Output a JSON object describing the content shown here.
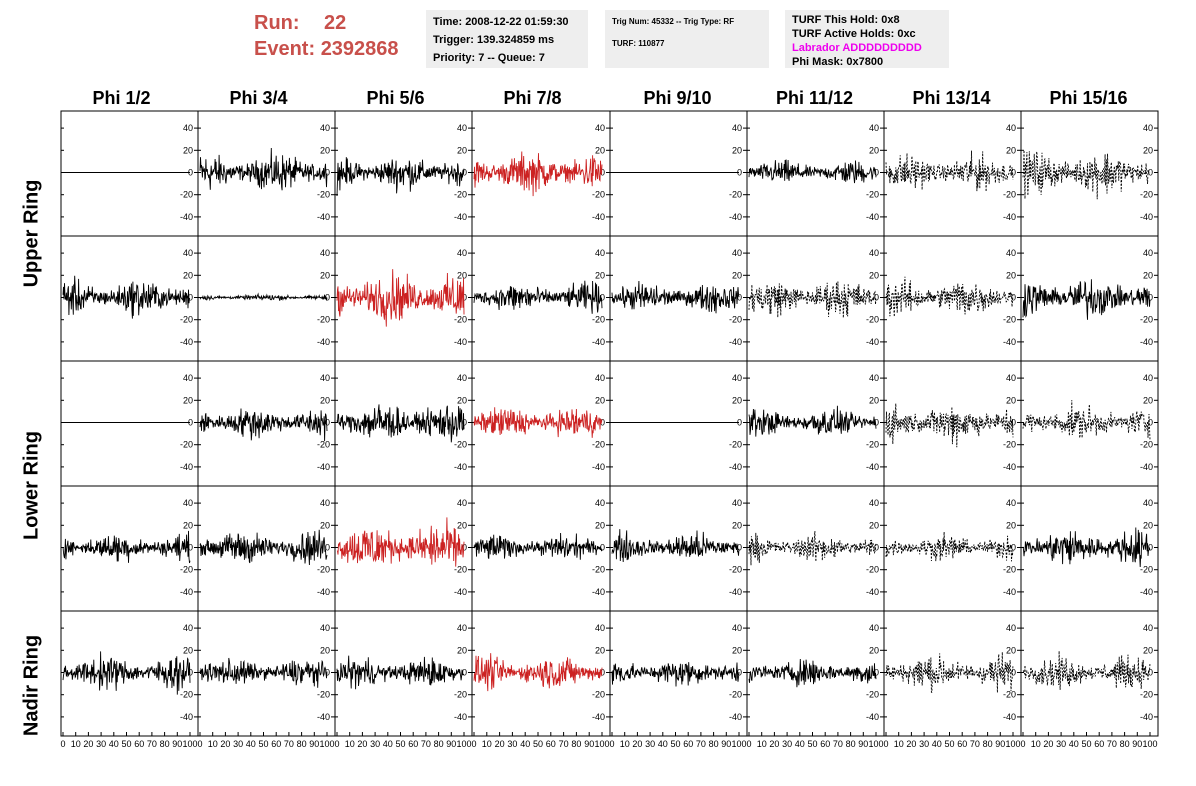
{
  "header": {
    "run_label": "Run:",
    "run_value": "22",
    "event_label": "Event:",
    "event_value": "2392868",
    "info_a": [
      "Time: 2008-12-22 01:59:30",
      "Trigger: 139.324859 ms",
      "Priority: 7 -- Queue: 7"
    ],
    "info_b": [
      "Trig Num: 45332 -- Trig Type: RF",
      "",
      "TURF: 110877"
    ],
    "info_c": [
      "TURF This Hold: 0x8",
      "TURF Active Holds: 0xc",
      "Labrador ADDDDDDDDD",
      "Phi Mask: 0x7800"
    ]
  },
  "colors": {
    "header_red": "#c8504b",
    "labrador_magenta": "#ee00ee",
    "info_bg": "#eeeeee",
    "trace_black": "#000000",
    "trace_red": "#cc2222"
  },
  "chart_data": {
    "type": "line",
    "columns": [
      "Phi 1/2",
      "Phi 3/4",
      "Phi 5/6",
      "Phi 7/8",
      "Phi 9/10",
      "Phi 11/12",
      "Phi 13/14",
      "Phi 15/16"
    ],
    "rows": [
      "Upper Ring",
      "Upper Ring",
      "Lower Ring",
      "Lower Ring",
      "Nadir Ring"
    ],
    "ring_labels": [
      "Upper Ring",
      "Lower Ring",
      "Nadir Ring"
    ],
    "x_range": [
      0,
      100
    ],
    "y_range": [
      -50,
      50
    ],
    "y_ticks": [
      -40,
      -20,
      0,
      20,
      40
    ],
    "x_ticks": [
      0,
      10,
      20,
      30,
      40,
      50,
      60,
      70,
      80,
      90,
      100
    ],
    "cells": [
      [
        {
          "amp": 0,
          "style": "flat"
        },
        {
          "amp": 19,
          "style": "solid"
        },
        {
          "amp": 17,
          "style": "solid"
        },
        {
          "amp": 20,
          "style": "red"
        },
        {
          "amp": 0,
          "style": "flat"
        },
        {
          "amp": 12,
          "style": "solid"
        },
        {
          "amp": 18,
          "style": "dashed"
        },
        {
          "amp": 22,
          "style": "dashed"
        }
      ],
      [
        {
          "amp": 18,
          "style": "solid"
        },
        {
          "amp": 3,
          "style": "solid"
        },
        {
          "amp": 25,
          "style": "red"
        },
        {
          "amp": 15,
          "style": "solid"
        },
        {
          "amp": 15,
          "style": "solid"
        },
        {
          "amp": 19,
          "style": "dashed"
        },
        {
          "amp": 19,
          "style": "dashed"
        },
        {
          "amp": 20,
          "style": "solid"
        }
      ],
      [
        {
          "amp": 0,
          "style": "flat"
        },
        {
          "amp": 16,
          "style": "solid"
        },
        {
          "amp": 20,
          "style": "solid"
        },
        {
          "amp": 16,
          "style": "red"
        },
        {
          "amp": 0,
          "style": "flat"
        },
        {
          "amp": 14,
          "style": "solid"
        },
        {
          "amp": 20,
          "style": "dashed"
        },
        {
          "amp": 17,
          "style": "dashed"
        }
      ],
      [
        {
          "amp": 14,
          "style": "solid"
        },
        {
          "amp": 17,
          "style": "solid"
        },
        {
          "amp": 24,
          "style": "red"
        },
        {
          "amp": 13,
          "style": "solid"
        },
        {
          "amp": 15,
          "style": "solid"
        },
        {
          "amp": 14,
          "style": "dashed"
        },
        {
          "amp": 13,
          "style": "dashed"
        },
        {
          "amp": 19,
          "style": "solid"
        }
      ],
      [
        {
          "amp": 17,
          "style": "solid"
        },
        {
          "amp": 14,
          "style": "solid"
        },
        {
          "amp": 15,
          "style": "solid"
        },
        {
          "amp": 17,
          "style": "red"
        },
        {
          "amp": 14,
          "style": "solid"
        },
        {
          "amp": 14,
          "style": "solid"
        },
        {
          "amp": 18,
          "style": "dashed"
        },
        {
          "amp": 16,
          "style": "dashed"
        }
      ]
    ]
  }
}
